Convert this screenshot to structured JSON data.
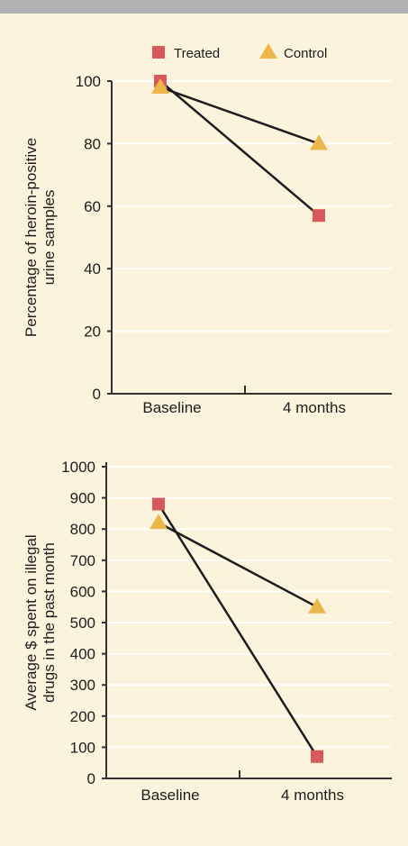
{
  "colors": {
    "background": "#fbf3db",
    "top_band": "#b1b2b3",
    "gridline": "#ffffff",
    "axis": "#333333",
    "line": "#1d1d1d",
    "treated": "#d9585b",
    "control": "#ecb64a"
  },
  "legend": {
    "position": "top-center",
    "items": [
      {
        "name": "Treated",
        "marker": "square",
        "color": "#d9585b"
      },
      {
        "name": "Control",
        "marker": "triangle",
        "color": "#ecb64a"
      }
    ]
  },
  "chart_data": [
    {
      "type": "line",
      "ylabel_lines": [
        "Percentage of heroin-positive",
        "urine samples"
      ],
      "categories": [
        "Baseline",
        "4 months"
      ],
      "ylim": [
        0,
        115
      ],
      "yticks": [
        "0",
        "20",
        "40",
        "60",
        "80",
        "100"
      ],
      "ytick_values": [
        0,
        20,
        40,
        60,
        80,
        100
      ],
      "grid": true,
      "series": [
        {
          "name": "Treated",
          "marker": "square",
          "values": [
            100,
            57
          ]
        },
        {
          "name": "Control",
          "marker": "triangle",
          "values": [
            98,
            80
          ]
        }
      ]
    },
    {
      "type": "line",
      "ylabel_lines": [
        "Average $ spent on illegal",
        "drugs in the past month"
      ],
      "categories": [
        "Baseline",
        "4 months"
      ],
      "ylim": [
        0,
        1000
      ],
      "yticks": [
        "0",
        "100",
        "200",
        "300",
        "400",
        "500",
        "600",
        "700",
        "800",
        "900",
        "1000"
      ],
      "ytick_values": [
        0,
        100,
        200,
        300,
        400,
        500,
        600,
        700,
        800,
        900,
        1000
      ],
      "grid": true,
      "series": [
        {
          "name": "Treated",
          "marker": "square",
          "values": [
            880,
            70
          ]
        },
        {
          "name": "Control",
          "marker": "triangle",
          "values": [
            820,
            550
          ]
        }
      ]
    }
  ]
}
